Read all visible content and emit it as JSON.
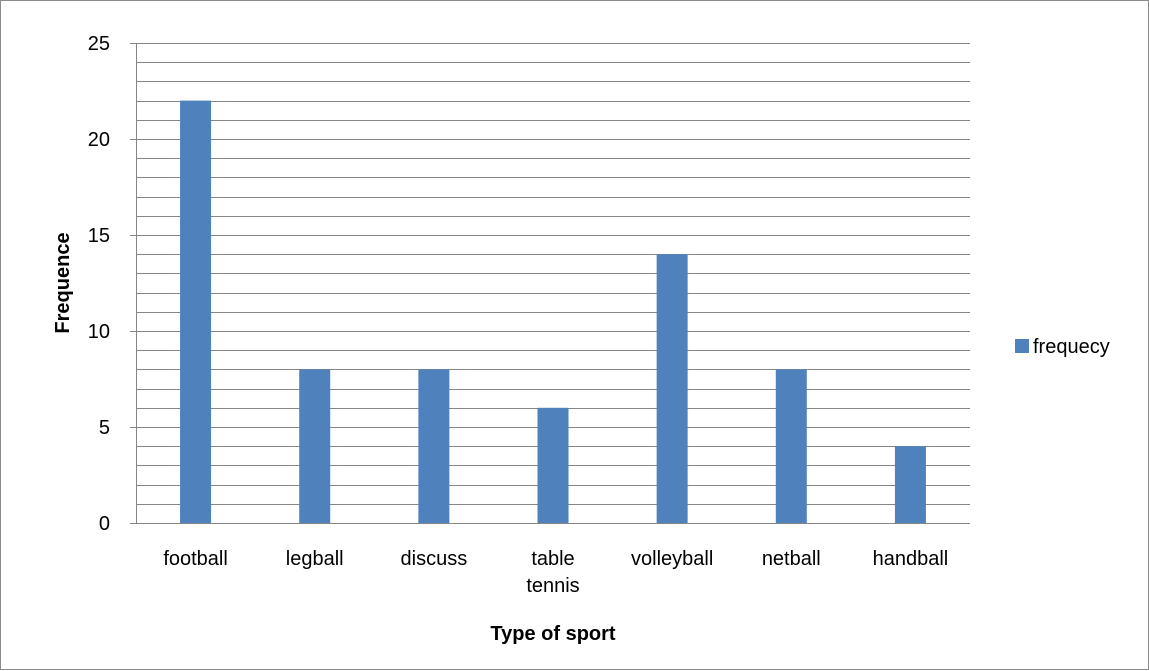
{
  "chart_data": {
    "type": "bar",
    "categories": [
      "football",
      "legball",
      "discuss",
      "table tennis",
      "volleyball",
      "netball",
      "handball"
    ],
    "series": [
      {
        "name": "frequecy",
        "values": [
          22,
          8,
          8,
          6,
          14,
          8,
          4
        ]
      }
    ],
    "title": "",
    "xlabel": "Type of sport",
    "ylabel": "Frequence",
    "ylim": [
      0,
      25
    ],
    "yticks": [
      0,
      5,
      10,
      15,
      20,
      25
    ],
    "minor_step": 1,
    "grid": true,
    "legend_position": "right",
    "colors": {
      "bar": "#4f81bd",
      "gridline": "#868686",
      "axis": "#868686"
    }
  }
}
